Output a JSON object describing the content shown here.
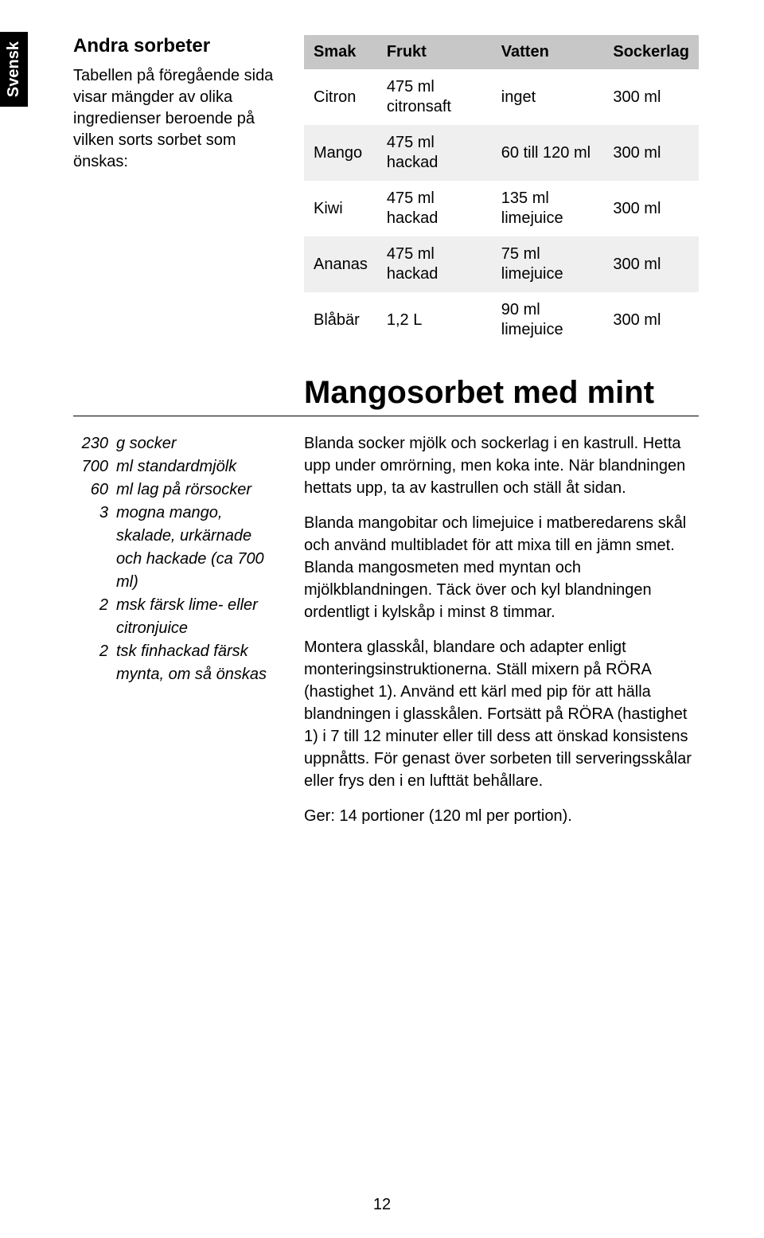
{
  "language_tab": "Svensk",
  "intro": {
    "heading": "Andra sorbeter",
    "text": "Tabellen på föregående sida visar mängder av olika ingredienser beroende på vilken sorts sorbet som önskas:"
  },
  "table": {
    "headers": [
      "Smak",
      "Frukt",
      "Vatten",
      "Sockerlag"
    ],
    "rows": [
      [
        "Citron",
        "475 ml citronsaft",
        "inget",
        "300 ml"
      ],
      [
        "Mango",
        "475 ml hackad",
        "60 till 120 ml",
        "300 ml"
      ],
      [
        "Kiwi",
        "475 ml hackad",
        "135 ml limejuice",
        "300 ml"
      ],
      [
        "Ananas",
        "475 ml hackad",
        "75 ml limejuice",
        "300 ml"
      ],
      [
        "Blåbär",
        "1,2 L",
        "90 ml limejuice",
        "300 ml"
      ]
    ]
  },
  "recipe": {
    "title": "Mangosorbet med mint",
    "ingredients": [
      {
        "qty": "230",
        "txt": "g socker"
      },
      {
        "qty": "700",
        "txt": "ml standardmjölk"
      },
      {
        "qty": "60",
        "txt": "ml lag på rörsocker"
      },
      {
        "qty": "3",
        "txt": "mogna mango, skalade, urkärnade och hackade (ca 700 ml)"
      },
      {
        "qty": "2",
        "txt": "msk färsk lime- eller citronjuice"
      },
      {
        "qty": "2",
        "txt": "tsk finhackad färsk mynta, om så önskas"
      }
    ],
    "paragraphs": [
      "Blanda socker mjölk och sockerlag i en kastrull. Hetta upp under omrörning, men koka inte. När blandningen hettats upp, ta av kastrullen och ställ åt sidan.",
      "Blanda mangobitar och limejuice i matberedarens skål och använd multibladet för att mixa till en jämn smet. Blanda mangosmeten med myntan och mjölkblandningen. Täck över och kyl blandningen ordentligt i kylskåp i minst 8 timmar.",
      "Montera glasskål, blandare och adapter enligt monteringsinstruktionerna. Ställ mixern på RÖRA (hastighet 1). Använd ett kärl med pip för att hälla blandningen i glasskålen. Fortsätt på RÖRA (hastighet 1) i 7 till 12 minuter eller till dess att önskad konsistens uppnåtts. För genast över sorbeten till serveringsskålar eller frys den i en lufttät behållare.",
      "Ger: 14 portioner (120 ml per portion)."
    ]
  },
  "page_number": "12"
}
